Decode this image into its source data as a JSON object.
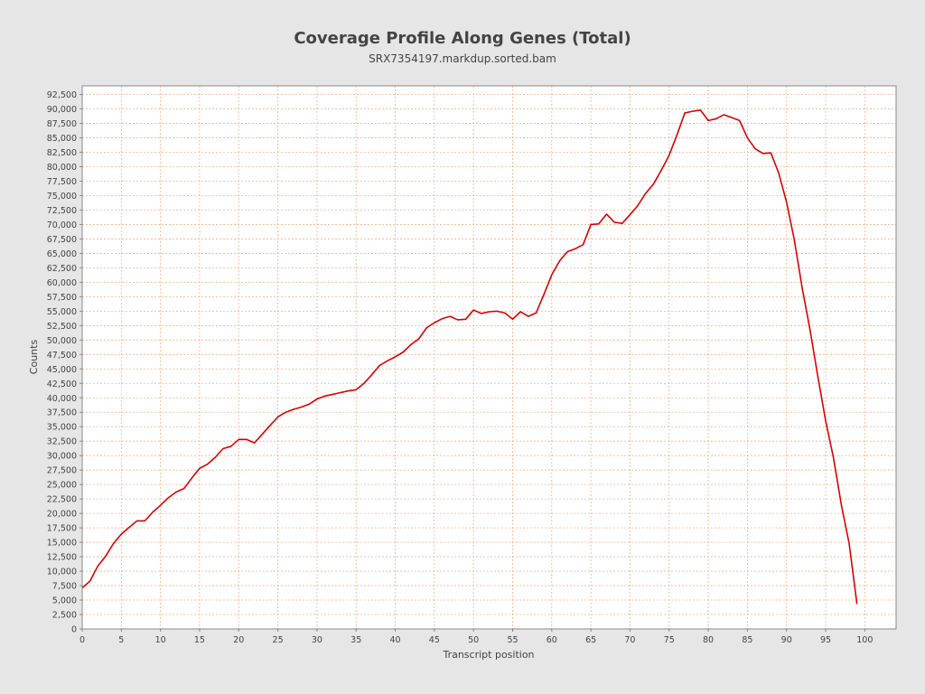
{
  "chart_data": {
    "type": "line",
    "title": "Coverage Profile Along Genes (Total)",
    "subtitle": "SRX7354197.markdup.sorted.bam",
    "xlabel": "Transcript position",
    "ylabel": "Counts",
    "xlim": [
      0,
      104
    ],
    "ylim": [
      0,
      94000
    ],
    "x_ticks": [
      0,
      5,
      10,
      15,
      20,
      25,
      30,
      35,
      40,
      45,
      50,
      55,
      60,
      65,
      70,
      75,
      80,
      85,
      90,
      95,
      100
    ],
    "y_ticks": [
      0,
      2500,
      5000,
      7500,
      10000,
      12500,
      15000,
      17500,
      20000,
      22500,
      25000,
      27500,
      30000,
      32500,
      35000,
      37500,
      40000,
      42500,
      45000,
      47500,
      50000,
      52500,
      55000,
      57500,
      60000,
      62500,
      65000,
      67500,
      70000,
      72500,
      75000,
      77500,
      80000,
      82500,
      85000,
      87500,
      90000,
      92500
    ],
    "grid": true,
    "line_color": "#dd0000",
    "grid_color": "#f0b48c",
    "series": [
      {
        "x": [
          0,
          1,
          2,
          3,
          4,
          5,
          6,
          7,
          8,
          9,
          10,
          11,
          12,
          13,
          14,
          15,
          16,
          17,
          18,
          19,
          20,
          21,
          22,
          23,
          24,
          25,
          26,
          27,
          28,
          29,
          30,
          31,
          32,
          33,
          34,
          35,
          36,
          37,
          38,
          39,
          40,
          41,
          42,
          43,
          44,
          45,
          46,
          47,
          48,
          49,
          50,
          51,
          52,
          53,
          54,
          55,
          56,
          57,
          58,
          59,
          60,
          61,
          62,
          63,
          64,
          65,
          66,
          67,
          68,
          69,
          70,
          71,
          72,
          73,
          74,
          75,
          76,
          77,
          78,
          79,
          80,
          81,
          82,
          83,
          84,
          85,
          86,
          87,
          88,
          89,
          90,
          91,
          92,
          93,
          94,
          95,
          96,
          97,
          98,
          99
        ],
        "values": [
          7100,
          8300,
          10900,
          12600,
          14800,
          16400,
          17600,
          18700,
          18700,
          20200,
          21400,
          22700,
          23700,
          24300,
          26100,
          27800,
          28500,
          29700,
          31200,
          31600,
          32800,
          32800,
          32200,
          33700,
          35200,
          36700,
          37500,
          38000,
          38400,
          38900,
          39800,
          40300,
          40600,
          40900,
          41200,
          41400,
          42500,
          44000,
          45600,
          46400,
          47100,
          47900,
          49200,
          50200,
          52100,
          53000,
          53700,
          54100,
          53500,
          53600,
          55200,
          54600,
          54900,
          55000,
          54700,
          53600,
          54900,
          54100,
          54700,
          57900,
          61300,
          63700,
          65300,
          65800,
          66500,
          70000,
          70100,
          71800,
          70400,
          70200,
          71700,
          73300,
          75400,
          77000,
          79400,
          82000,
          85500,
          89300,
          89600,
          89800,
          88000,
          88300,
          89000,
          88500,
          88000,
          85000,
          83100,
          82300,
          82400,
          78900,
          73900,
          67300,
          59000,
          51800,
          43700,
          36000,
          29600,
          21500,
          14800,
          4300
        ]
      }
    ]
  }
}
